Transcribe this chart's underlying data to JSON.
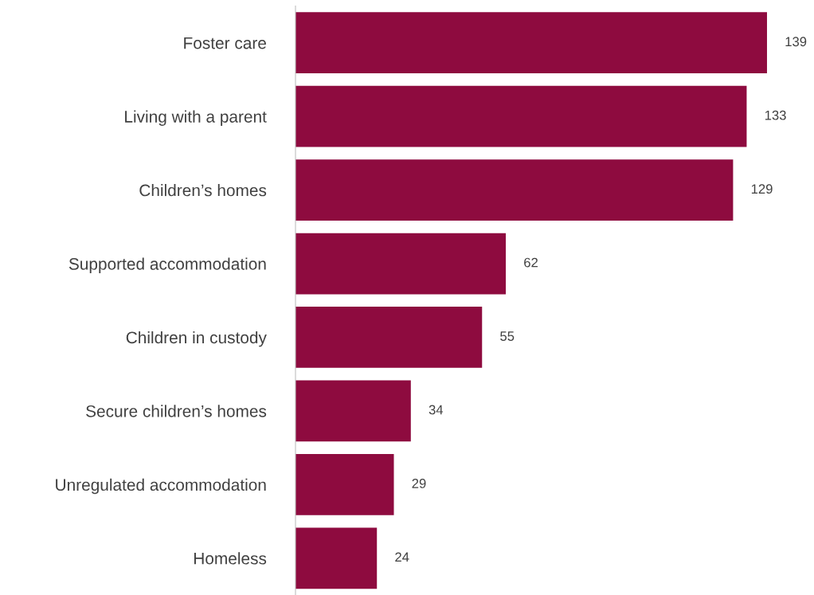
{
  "chart_data": {
    "type": "bar",
    "orientation": "horizontal",
    "categories": [
      "Foster care",
      "Living with a parent",
      "Children’s homes",
      "Supported accommodation",
      "Children in custody",
      "Secure children’s homes",
      "Unregulated accommodation",
      "Homeless"
    ],
    "values": [
      139,
      133,
      129,
      62,
      55,
      34,
      29,
      24
    ],
    "color": "#8e0b3f",
    "data_labels": true,
    "tick_labels": "y",
    "grid": false,
    "legend": false
  }
}
